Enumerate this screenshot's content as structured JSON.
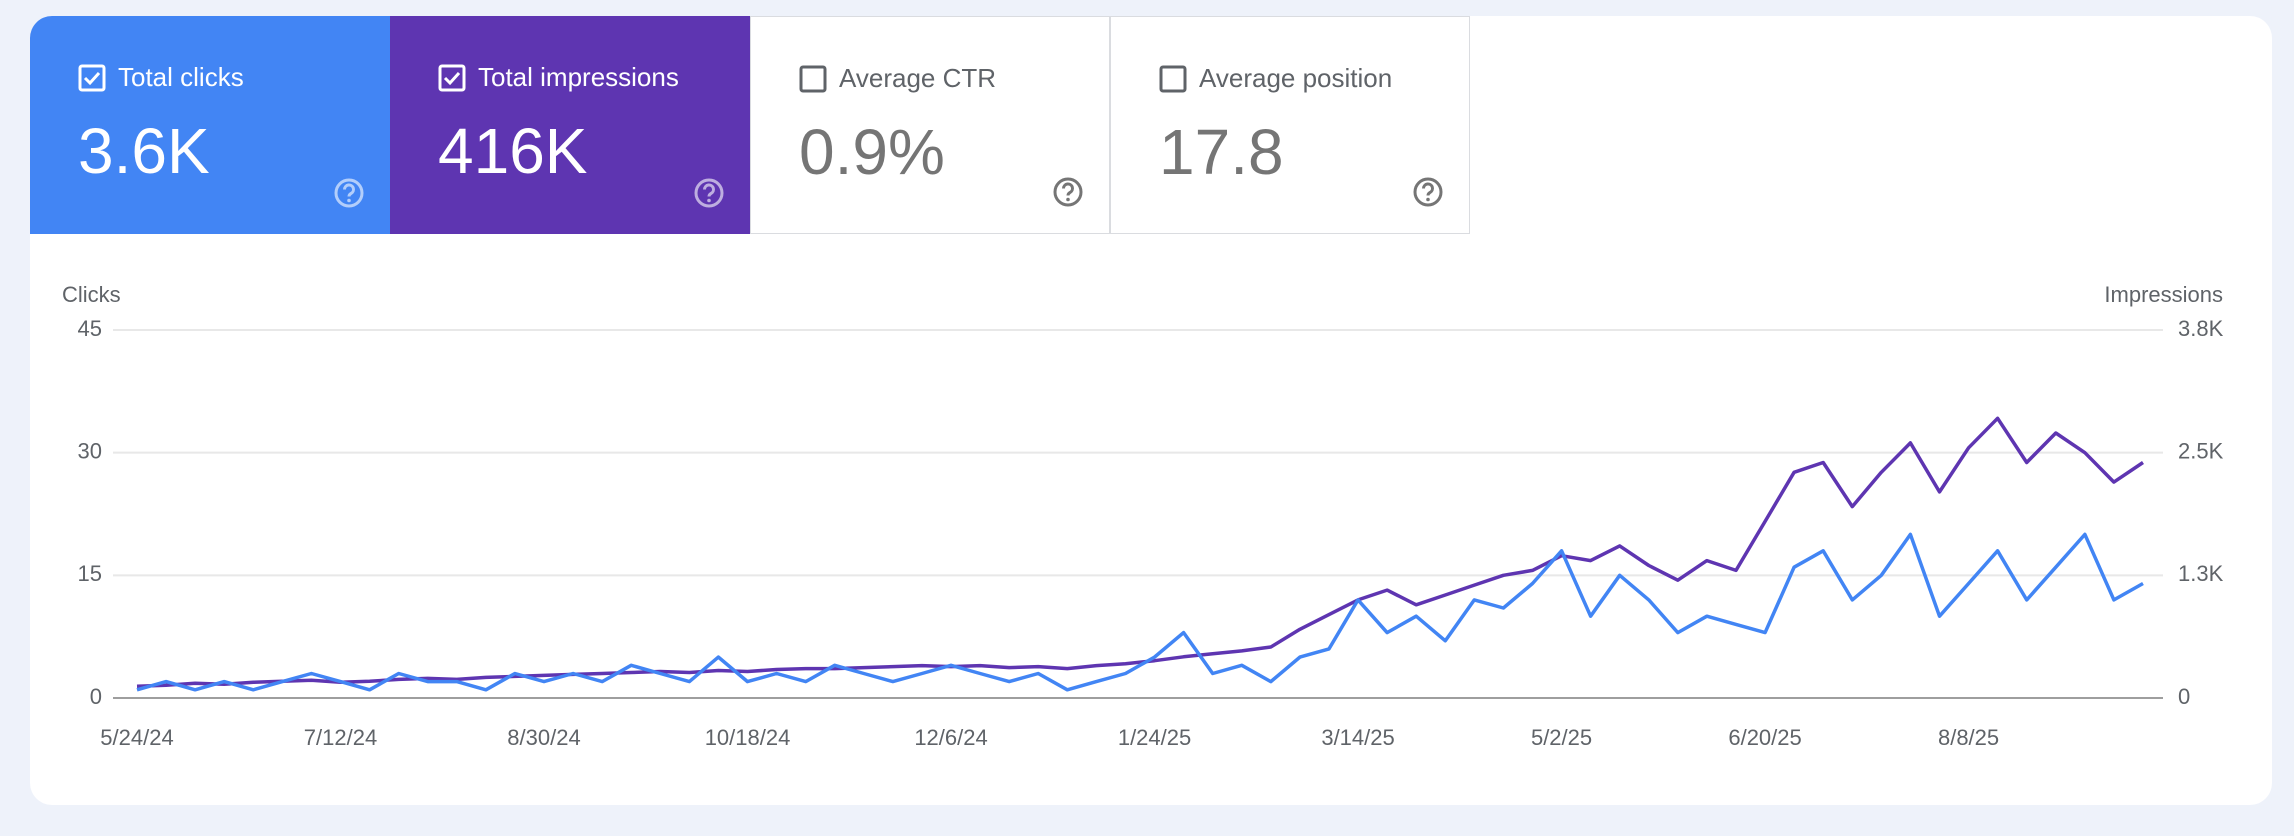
{
  "metrics": [
    {
      "label": "Total clicks",
      "value": "3.6K"
    },
    {
      "label": "Total impressions",
      "value": "416K"
    },
    {
      "label": "Average CTR",
      "value": "0.9%"
    },
    {
      "label": "Average position",
      "value": "17.8"
    }
  ],
  "chart_data": {
    "type": "line",
    "y_label": "Clicks",
    "y2_label": "Impressions",
    "categories": [
      "5/24/24",
      null,
      null,
      null,
      null,
      null,
      null,
      "7/12/24",
      null,
      null,
      null,
      null,
      null,
      null,
      "8/30/24",
      null,
      null,
      null,
      null,
      null,
      null,
      "10/18/24",
      null,
      null,
      null,
      null,
      null,
      null,
      "12/6/24",
      null,
      null,
      null,
      null,
      null,
      null,
      "1/24/25",
      null,
      null,
      null,
      null,
      null,
      null,
      "3/14/25",
      null,
      null,
      null,
      null,
      null,
      null,
      "5/2/25",
      null,
      null,
      null,
      null,
      null,
      null,
      "6/20/25",
      null,
      null,
      null,
      null,
      null,
      null,
      "8/8/25",
      null,
      null,
      null,
      null,
      null,
      null
    ],
    "series": [
      {
        "name": "Clicks",
        "color": "#4285f4",
        "values": [
          1,
          2,
          1,
          2,
          1,
          2,
          3,
          2,
          1,
          3,
          2,
          2,
          1,
          3,
          2,
          3,
          2,
          4,
          3,
          2,
          5,
          2,
          3,
          2,
          4,
          3,
          2,
          3,
          4,
          3,
          2,
          3,
          1,
          2,
          3,
          5,
          8,
          3,
          4,
          2,
          5,
          6,
          12,
          8,
          10,
          7,
          12,
          11,
          14,
          18,
          10,
          15,
          12,
          8,
          10,
          9,
          8,
          16,
          18,
          12,
          15,
          20,
          10,
          14,
          18,
          12,
          16,
          20,
          12,
          14
        ]
      },
      {
        "name": "Impressions",
        "color": "#5e35b1",
        "axis": "y2",
        "values": [
          120,
          130,
          150,
          140,
          160,
          170,
          180,
          160,
          170,
          190,
          200,
          190,
          210,
          220,
          230,
          240,
          250,
          260,
          270,
          260,
          280,
          270,
          290,
          300,
          300,
          310,
          320,
          330,
          320,
          330,
          310,
          320,
          300,
          330,
          350,
          380,
          420,
          450,
          480,
          520,
          700,
          850,
          1000,
          1100,
          950,
          1050,
          1150,
          1250,
          1300,
          1450,
          1400,
          1550,
          1350,
          1200,
          1400,
          1300,
          1800,
          2300,
          2400,
          1950,
          2300,
          2600,
          2100,
          2550,
          2850,
          2400,
          2700,
          2500,
          2200,
          2400
        ]
      }
    ],
    "ylim": [
      0,
      45
    ],
    "yticks": [
      0,
      15,
      30,
      45
    ],
    "y2lim": [
      0,
      3750
    ],
    "y2ticks": [
      0,
      {
        "value": 1250,
        "label": "1.3K"
      },
      {
        "value": 2500,
        "label": "2.5K"
      },
      {
        "value": 3750,
        "label": "3.8K"
      }
    ],
    "grid": true
  }
}
